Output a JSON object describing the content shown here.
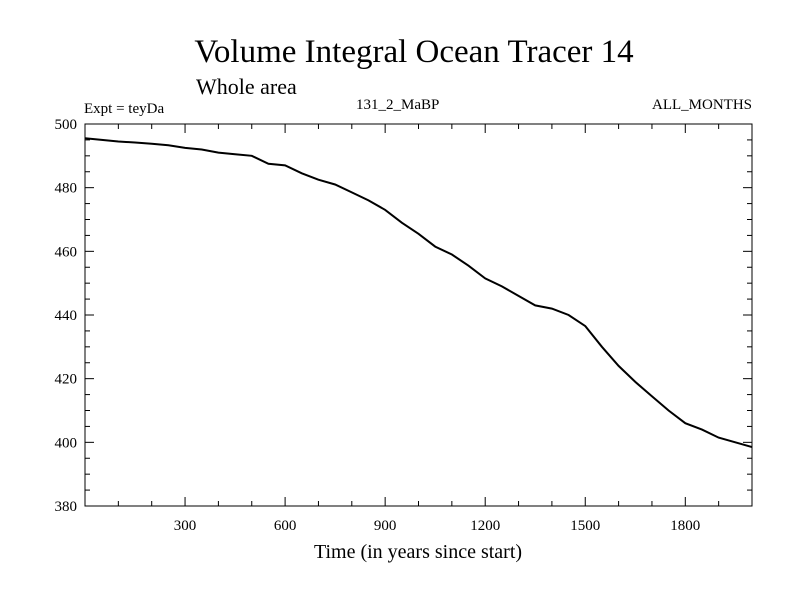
{
  "chart_data": {
    "type": "line",
    "title": "Volume Integral Ocean Tracer 14",
    "subtitle": "Whole area",
    "experiment_label": "Expt = teyDa",
    "run_label": "131_2_MaBP",
    "period_label": "ALL_MONTHS",
    "xlabel": "Time (in years since start)",
    "ylabel": "",
    "xlim": [
      0,
      2000
    ],
    "ylim": [
      380,
      500
    ],
    "xticks": [
      300,
      600,
      900,
      1200,
      1500,
      1800
    ],
    "yticks": [
      380,
      400,
      420,
      440,
      460,
      480,
      500
    ],
    "grid": false,
    "series": [
      {
        "name": "Tracer 14",
        "color": "#000000",
        "x": [
          0,
          50,
          100,
          150,
          200,
          250,
          300,
          350,
          400,
          450,
          500,
          550,
          600,
          650,
          700,
          750,
          800,
          850,
          900,
          950,
          1000,
          1050,
          1100,
          1150,
          1200,
          1250,
          1300,
          1350,
          1400,
          1450,
          1500,
          1550,
          1600,
          1650,
          1700,
          1750,
          1800,
          1850,
          1900,
          1950,
          2000
        ],
        "values": [
          495.5,
          495.0,
          494.5,
          494.2,
          493.8,
          493.3,
          492.5,
          492.0,
          491.0,
          490.5,
          490.0,
          487.5,
          487.0,
          484.5,
          482.5,
          481.0,
          478.5,
          476.0,
          473.0,
          469.0,
          465.5,
          461.5,
          459.0,
          455.5,
          451.5,
          449.0,
          446.0,
          443.0,
          442.0,
          440.0,
          436.5,
          430.0,
          424.0,
          419.0,
          414.5,
          410.0,
          406.0,
          404.0,
          401.5,
          400.0,
          398.5
        ]
      }
    ]
  }
}
